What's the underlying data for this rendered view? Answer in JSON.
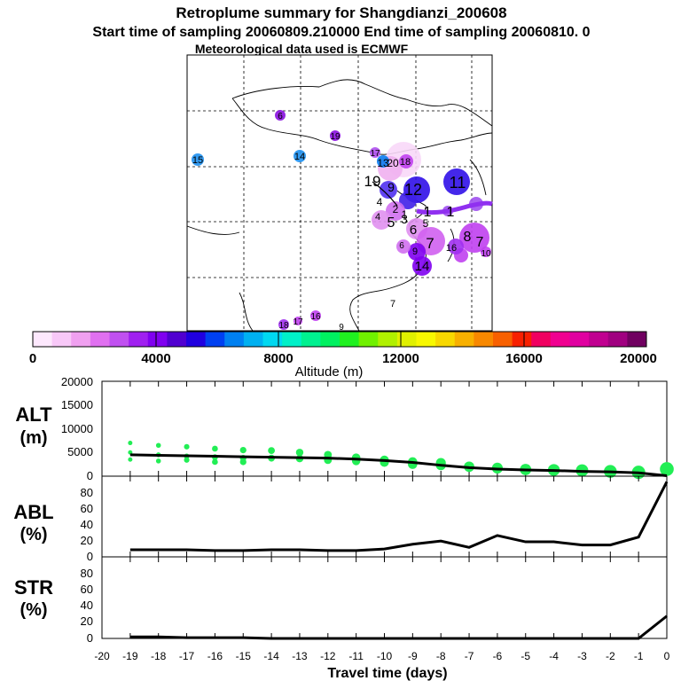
{
  "header": {
    "title": "Retroplume summary for Shangdianzi_200608",
    "sampling_line": "Start time of sampling 20060809.210000     End time of sampling 20060810.     0",
    "met_line": "Meteorological data used is ECMWF"
  },
  "colors": {
    "ramp": [
      "#fde8fd",
      "#f8c8f8",
      "#f0a0f0",
      "#e070f0",
      "#c050f0",
      "#a020f0",
      "#8000f0",
      "#5000d0",
      "#2000e0",
      "#0040f0",
      "#0080f0",
      "#00b0f0",
      "#00d8f0",
      "#00f0c8",
      "#00f090",
      "#00f060",
      "#20f020",
      "#70f000",
      "#b0f000",
      "#e0f000",
      "#f8f800",
      "#f8d800",
      "#f8b000",
      "#f88800",
      "#f86000",
      "#f82000",
      "#f00060",
      "#f00090",
      "#e000a0",
      "#c00090",
      "#a00080",
      "#700060"
    ],
    "alt_dots": "#22ee55",
    "line": "#000000"
  },
  "colorbar": {
    "ticks": [
      "0",
      "4000",
      "8000",
      "12000",
      "16000",
      "20000"
    ],
    "label": "Altitude (m)"
  },
  "map_labels": [
    {
      "text": "6"
    },
    {
      "text": "19"
    },
    {
      "text": "15"
    },
    {
      "text": "14"
    },
    {
      "text": "17"
    },
    {
      "text": "13"
    },
    {
      "text": "20"
    },
    {
      "text": "18"
    },
    {
      "text": "19"
    },
    {
      "text": "12"
    },
    {
      "text": "11"
    },
    {
      "text": "9"
    },
    {
      "text": "4"
    },
    {
      "text": "2"
    },
    {
      "text": "1"
    },
    {
      "text": "5"
    },
    {
      "text": "3"
    },
    {
      "text": "4"
    },
    {
      "text": "1"
    },
    {
      "text": "1"
    },
    {
      "text": "5"
    },
    {
      "text": "6"
    },
    {
      "text": "7"
    },
    {
      "text": "8"
    },
    {
      "text": "6"
    },
    {
      "text": "7"
    },
    {
      "text": "10"
    },
    {
      "text": "9"
    },
    {
      "text": "16"
    },
    {
      "text": "14"
    },
    {
      "text": "7"
    },
    {
      "text": "18"
    },
    {
      "text": "17"
    },
    {
      "text": "16"
    },
    {
      "text": "9"
    }
  ],
  "chart_data": [
    {
      "type": "scatter",
      "title": "ALT (m)",
      "ylabel": "ALT\n(m)",
      "xlabel": "Travel time (days)",
      "ylim": [
        0,
        20000
      ],
      "yticks": [
        "20000",
        "15000",
        "10000",
        "5000",
        "0"
      ],
      "x": [
        -19,
        -18,
        -17,
        -16,
        -15,
        -14,
        -13,
        -12,
        -11,
        -10,
        -9,
        -8,
        -7,
        -6,
        -5,
        -4,
        -3,
        -2,
        -1,
        0
      ],
      "series": [
        {
          "name": "median altitude",
          "values": [
            4500,
            4400,
            4300,
            4200,
            4100,
            4000,
            3900,
            3800,
            3600,
            3300,
            2900,
            2300,
            1800,
            1500,
            1300,
            1200,
            1000,
            900,
            700,
            100
          ]
        },
        {
          "name": "plume altitude clusters",
          "values": [
            [
              7000,
              5000,
              3500
            ],
            [
              6500,
              4500,
              3200
            ],
            [
              6200,
              4200,
              3400
            ],
            [
              5800,
              4000,
              3000
            ],
            [
              5500,
              3800,
              3000
            ],
            [
              5400,
              3800
            ],
            [
              5000,
              3700
            ],
            [
              4500,
              3400
            ],
            [
              3900,
              3200
            ],
            [
              3400,
              2900
            ],
            [
              3000,
              2500
            ],
            [
              2800,
              2300
            ],
            [
              2000
            ],
            [
              1700
            ],
            [
              1400
            ],
            [
              1300
            ],
            [
              1200
            ],
            [
              1000
            ],
            [
              800
            ],
            [
              1500
            ]
          ]
        }
      ]
    },
    {
      "type": "line",
      "title": "ABL (%)",
      "ylabel": "ABL\n(%)",
      "xlabel": "Travel time (days)",
      "ylim": [
        0,
        100
      ],
      "yticks": [
        "80",
        "60",
        "40",
        "20",
        "0"
      ],
      "x": [
        -19,
        -18,
        -17,
        -16,
        -15,
        -14,
        -13,
        -12,
        -11,
        -10,
        -9,
        -8,
        -7,
        -6,
        -5,
        -4,
        -3,
        -2,
        -1,
        0
      ],
      "values": [
        9,
        9,
        9,
        8,
        8,
        9,
        9,
        8,
        8,
        10,
        16,
        20,
        12,
        27,
        19,
        19,
        15,
        15,
        25,
        95
      ]
    },
    {
      "type": "line",
      "title": "STR (%)",
      "ylabel": "STR\n(%)",
      "xlabel": "Travel time (days)",
      "ylim": [
        0,
        100
      ],
      "yticks": [
        "80",
        "60",
        "40",
        "20",
        "0"
      ],
      "x": [
        -19,
        -18,
        -17,
        -16,
        -15,
        -14,
        -13,
        -12,
        -11,
        -10,
        -9,
        -8,
        -7,
        -6,
        -5,
        -4,
        -3,
        -2,
        -1,
        0
      ],
      "values": [
        2,
        2,
        1,
        1,
        1,
        0,
        0,
        0,
        0,
        0,
        0,
        0,
        0,
        0,
        0,
        0,
        0,
        0,
        0,
        28
      ]
    }
  ],
  "xaxis": {
    "ticks": [
      "-20",
      "-19",
      "-18",
      "-17",
      "-16",
      "-15",
      "-14",
      "-13",
      "-12",
      "-11",
      "-10",
      "-9",
      "-8",
      "-7",
      "-6",
      "-5",
      "-4",
      "-3",
      "-2",
      "-1",
      "0"
    ],
    "label": "Travel time (days)"
  }
}
